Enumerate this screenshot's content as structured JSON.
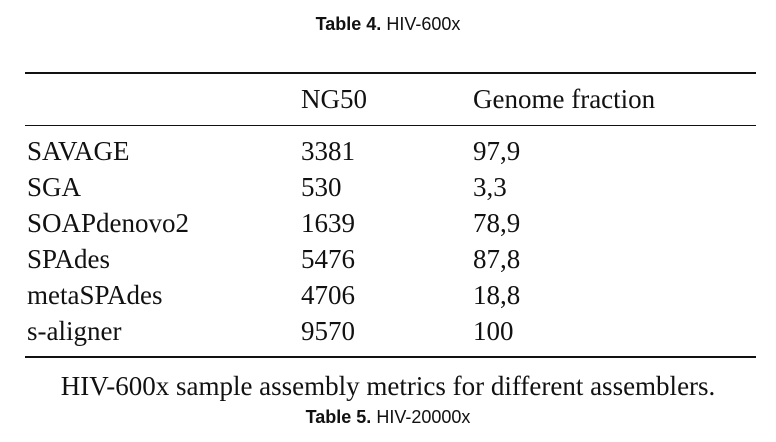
{
  "table4_caption": {
    "label": "Table 4.",
    "title": "HIV-600x"
  },
  "table": {
    "headers": [
      "",
      "NG50",
      "Genome fraction"
    ],
    "rows": [
      [
        "SAVAGE",
        "3381",
        "97,9"
      ],
      [
        "SGA",
        "530",
        "3,3"
      ],
      [
        "SOAPdenovo2",
        "1639",
        "78,9"
      ],
      [
        "SPAdes",
        "5476",
        "87,8"
      ],
      [
        "metaSPAdes",
        "4706",
        "18,8"
      ],
      [
        "s-aligner",
        "9570",
        "100"
      ]
    ]
  },
  "table_footer": "HIV-600x sample assembly metrics for different assemblers.",
  "table5_caption": {
    "label": "Table 5.",
    "title": "HIV-20000x"
  }
}
